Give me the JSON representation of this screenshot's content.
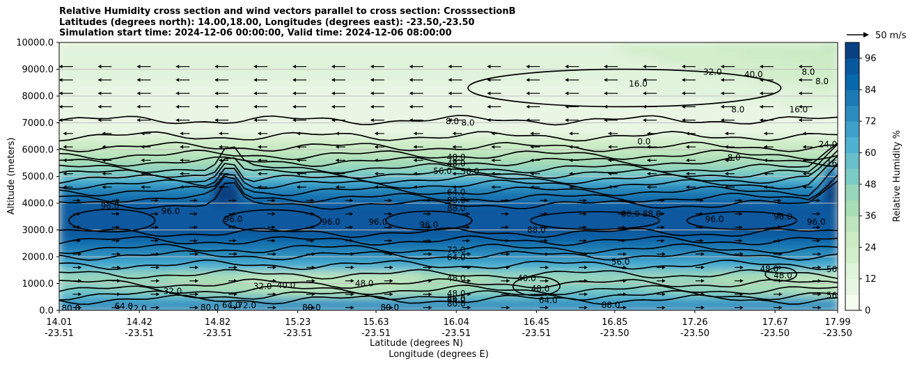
{
  "title_lines": [
    "Relative Humidity cross section and wind vectors parallel to cross section: CrosssectionB",
    "Latitudes (degrees north): 14.00,18.00, Longitudes (degrees east): -23.50,-23.50",
    "Simulation start time: 2024-12-06 00:00:00, Valid time: 2024-12-06 08:00:00"
  ],
  "colors": {
    "colormap": [
      "#f7fcf0",
      "#e9f6e4",
      "#e0f3db",
      "#d2eecb",
      "#ccebc5",
      "#bce5bd",
      "#a8ddb5",
      "#98d6bc",
      "#7bccc4",
      "#68bfca",
      "#4eb3d3",
      "#3ea1ca",
      "#2b8cbe",
      "#1b7ab3",
      "#0868ac",
      "#08589e",
      "#084081"
    ],
    "contour": "#000000",
    "grid": "#c0c0c0"
  },
  "chart_data": {
    "type": "heatmap",
    "xlabel": "Latitude (degrees N)",
    "xlabel2": "Longitude (degrees E)",
    "ylabel": "Altitude (meters)",
    "ylim": [
      0,
      10000
    ],
    "y_ticks": [
      "0.0",
      "1000.0",
      "2000.0",
      "3000.0",
      "4000.0",
      "5000.0",
      "6000.0",
      "7000.0",
      "8000.0",
      "9000.0",
      "10000.0"
    ],
    "x_ticks": [
      {
        "lat": "14.01",
        "lon": "-23.51"
      },
      {
        "lat": "14.42",
        "lon": "-23.51"
      },
      {
        "lat": "14.82",
        "lon": "-23.51"
      },
      {
        "lat": "15.23",
        "lon": "-23.51"
      },
      {
        "lat": "15.63",
        "lon": "-23.51"
      },
      {
        "lat": "16.04",
        "lon": "-23.51"
      },
      {
        "lat": "16.45",
        "lon": "-23.51"
      },
      {
        "lat": "16.85",
        "lon": "-23.50"
      },
      {
        "lat": "17.26",
        "lon": "-23.50"
      },
      {
        "lat": "17.67",
        "lon": "-23.50"
      },
      {
        "lat": "17.99",
        "lon": "-23.50"
      }
    ],
    "colorbar": {
      "label": "Relative Humidity %",
      "ticks": [
        "0",
        "12",
        "24",
        "36",
        "48",
        "60",
        "72",
        "84",
        "96"
      ],
      "min": 0,
      "max": 102,
      "step": 6
    },
    "quiver_key": "50 m/s",
    "grid": "horizontal",
    "contour_labels": [
      {
        "text": "96.0",
        "x": 14.9,
        "y": 3400
      },
      {
        "text": "96.0",
        "x": 15.64,
        "y": 3300
      },
      {
        "text": "96.0",
        "x": 14.27,
        "y": 3900
      },
      {
        "text": "96.0",
        "x": 15.4,
        "y": 3300
      },
      {
        "text": "96.0",
        "x": 15.9,
        "y": 3200
      },
      {
        "text": "96.0",
        "x": 17.36,
        "y": 3400
      },
      {
        "text": "96.0",
        "x": 17.88,
        "y": 3300
      },
      {
        "text": "96.0",
        "x": 14.58,
        "y": 3700
      },
      {
        "text": "96.0",
        "x": 17.71,
        "y": 3500
      },
      {
        "text": "88.0",
        "x": 16.45,
        "y": 3000
      },
      {
        "text": "80.0",
        "x": 16.93,
        "y": 3600
      },
      {
        "text": "88.0",
        "x": 17.04,
        "y": 3600
      },
      {
        "text": "88.0",
        "x": 16.04,
        "y": 3800
      },
      {
        "text": "80.0",
        "x": 16.04,
        "y": 4100
      },
      {
        "text": "72.0",
        "x": 16.04,
        "y": 2250
      },
      {
        "text": "64.0",
        "x": 16.04,
        "y": 1970
      },
      {
        "text": "64.0",
        "x": 16.04,
        "y": 4400
      },
      {
        "text": "56.0",
        "x": 15.97,
        "y": 5200
      },
      {
        "text": "56.0",
        "x": 16.11,
        "y": 5180
      },
      {
        "text": "48.0",
        "x": 16.04,
        "y": 5480
      },
      {
        "text": "40.0",
        "x": 16.04,
        "y": 5720
      },
      {
        "text": "8.0",
        "x": 16.02,
        "y": 7050
      },
      {
        "text": "8.0",
        "x": 16.1,
        "y": 7000
      },
      {
        "text": "16.0",
        "x": 16.97,
        "y": 8450
      },
      {
        "text": "32.0",
        "x": 17.35,
        "y": 8900
      },
      {
        "text": "40.0",
        "x": 17.56,
        "y": 8800
      },
      {
        "text": "8.0",
        "x": 17.84,
        "y": 8900
      },
      {
        "text": "8.0",
        "x": 17.91,
        "y": 8550
      },
      {
        "text": "16.0",
        "x": 17.79,
        "y": 7500
      },
      {
        "text": "8.0",
        "x": 17.48,
        "y": 7500
      },
      {
        "text": "24.0",
        "x": 17.94,
        "y": 6200
      },
      {
        "text": "8.0",
        "x": 17.46,
        "y": 5700
      },
      {
        "text": "0.0",
        "x": 17.0,
        "y": 6300
      },
      {
        "text": "16.0",
        "x": 17.98,
        "y": 5500
      },
      {
        "text": "56.0",
        "x": 16.88,
        "y": 1800
      },
      {
        "text": "48.0",
        "x": 16.04,
        "y": 1200
      },
      {
        "text": "48.0",
        "x": 16.04,
        "y": 620
      },
      {
        "text": "56.0",
        "x": 16.04,
        "y": 430
      },
      {
        "text": "64.0",
        "x": 16.04,
        "y": 360
      },
      {
        "text": "80.0",
        "x": 16.04,
        "y": 250
      },
      {
        "text": "40.0",
        "x": 16.4,
        "y": 1200
      },
      {
        "text": "48.0",
        "x": 16.47,
        "y": 800
      },
      {
        "text": "64.0",
        "x": 16.51,
        "y": 380
      },
      {
        "text": "88.0",
        "x": 16.83,
        "y": 200
      },
      {
        "text": "48.0",
        "x": 17.64,
        "y": 1550
      },
      {
        "text": "48.0",
        "x": 17.71,
        "y": 1300
      },
      {
        "text": "56.0",
        "x": 17.98,
        "y": 1530
      },
      {
        "text": "56.0",
        "x": 17.98,
        "y": 560
      },
      {
        "text": "32.0",
        "x": 14.59,
        "y": 710
      },
      {
        "text": "32.0",
        "x": 15.05,
        "y": 900
      },
      {
        "text": "40.0",
        "x": 15.17,
        "y": 930
      },
      {
        "text": "48.0",
        "x": 15.57,
        "y": 1000
      },
      {
        "text": "80.0",
        "x": 14.07,
        "y": 80
      },
      {
        "text": "64.0",
        "x": 14.34,
        "y": 160
      },
      {
        "text": "72.0",
        "x": 14.41,
        "y": 60
      },
      {
        "text": "80.0",
        "x": 14.78,
        "y": 100
      },
      {
        "text": "64.0",
        "x": 14.89,
        "y": 200
      },
      {
        "text": "72.0",
        "x": 14.97,
        "y": 180
      },
      {
        "text": "80.0",
        "x": 15.3,
        "y": 100
      },
      {
        "text": "80.0",
        "x": 15.7,
        "y": 100
      }
    ]
  }
}
